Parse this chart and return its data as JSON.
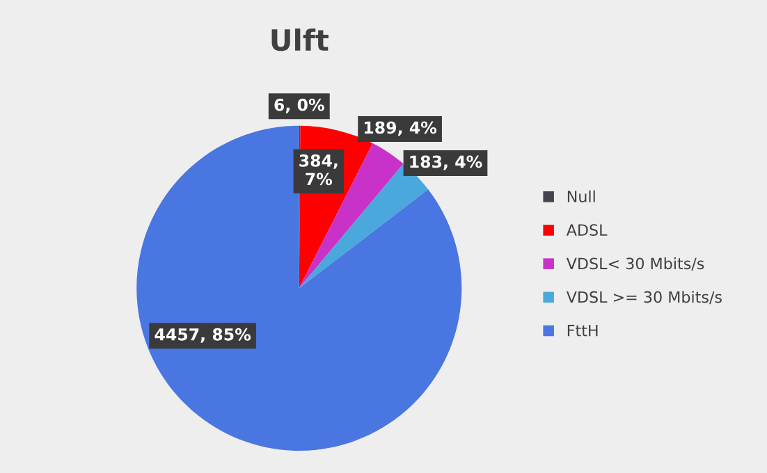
{
  "chart_data": {
    "type": "pie",
    "title": "Ulft",
    "categories": [
      "Null",
      "ADSL",
      "VDSL< 30 Mbits/s",
      "VDSL >= 30 Mbits/s",
      "FttH"
    ],
    "values": [
      6,
      384,
      189,
      183,
      4457
    ],
    "colors": [
      "#44444f",
      "#ff0000",
      "#c832c8",
      "#4aa8dc",
      "#4a76e2"
    ],
    "value_labels": [
      "6, 0%",
      "384,\n7%",
      "189, 4%",
      "183, 4%",
      "4457, 85%"
    ],
    "legend": "right"
  }
}
